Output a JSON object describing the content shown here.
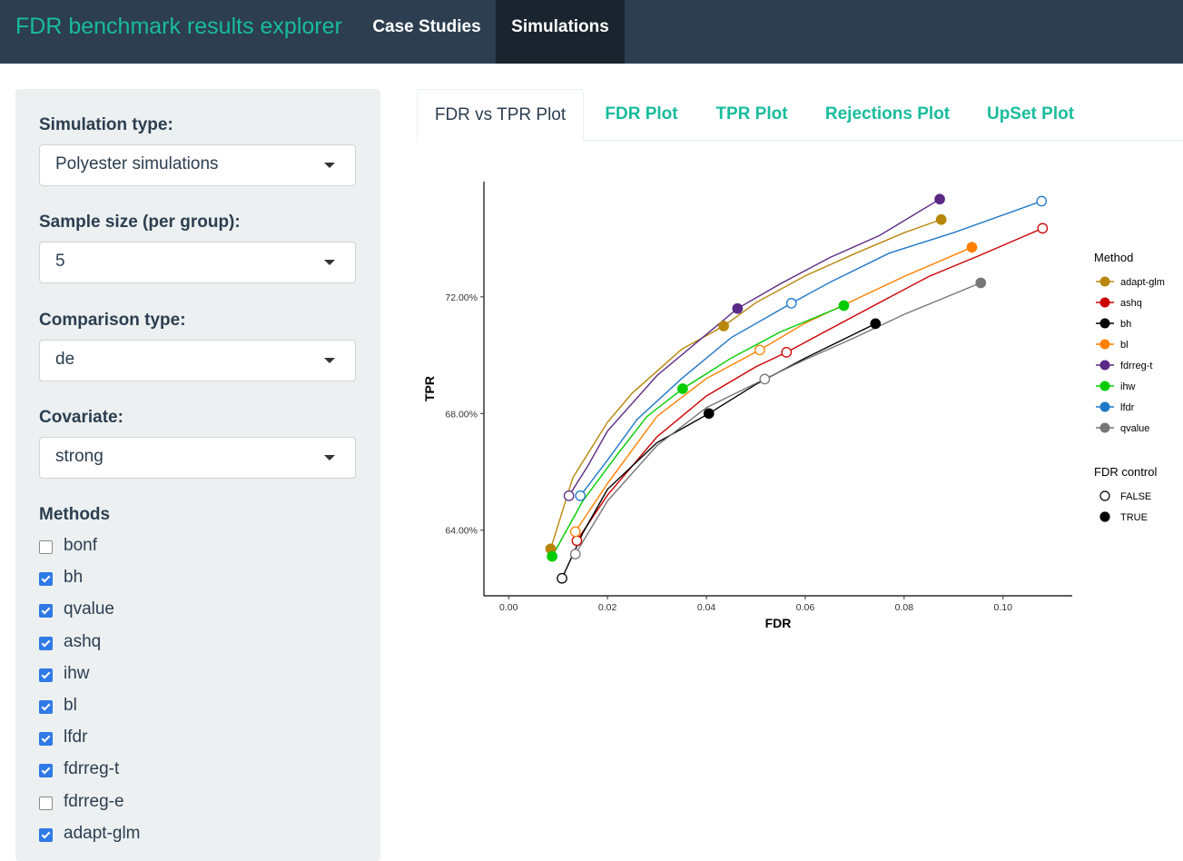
{
  "navbar": {
    "brand": "FDR benchmark results explorer",
    "items": [
      "Case Studies",
      "Simulations"
    ],
    "active": "Simulations"
  },
  "sidebar": {
    "simulation_type": {
      "label": "Simulation type:",
      "value": "Polyester simulations"
    },
    "sample_size": {
      "label": "Sample size (per group):",
      "value": "5"
    },
    "comparison_type": {
      "label": "Comparison type:",
      "value": "de"
    },
    "covariate": {
      "label": "Covariate:",
      "value": "strong"
    },
    "methods_title": "Methods",
    "methods": [
      {
        "label": "bonf",
        "checked": false
      },
      {
        "label": "bh",
        "checked": true
      },
      {
        "label": "qvalue",
        "checked": true
      },
      {
        "label": "ashq",
        "checked": true
      },
      {
        "label": "ihw",
        "checked": true
      },
      {
        "label": "bl",
        "checked": true
      },
      {
        "label": "lfdr",
        "checked": true
      },
      {
        "label": "fdrreg-t",
        "checked": true
      },
      {
        "label": "fdrreg-e",
        "checked": false
      },
      {
        "label": "adapt-glm",
        "checked": true
      }
    ]
  },
  "tabs": [
    "FDR vs TPR Plot",
    "FDR Plot",
    "TPR Plot",
    "Rejections Plot",
    "UpSet Plot"
  ],
  "active_tab": "FDR vs TPR Plot",
  "chart_data": {
    "type": "line",
    "title": "",
    "xlabel": "FDR",
    "ylabel": "TPR",
    "xlim": [
      -0.005,
      0.114
    ],
    "ylim": [
      0.6175,
      0.7595
    ],
    "x_ticks": [
      "0.00",
      "0.02",
      "0.04",
      "0.06",
      "0.08",
      "0.10"
    ],
    "x_tick_values": [
      0.0,
      0.02,
      0.04,
      0.06,
      0.08,
      0.1
    ],
    "y_ticks": [
      "64.00%",
      "68.00%",
      "72.00%"
    ],
    "y_tick_values": [
      0.64,
      0.68,
      0.72
    ],
    "legend_title": "Method",
    "legend2_title": "FDR control",
    "legend2_entries": [
      "FALSE",
      "TRUE"
    ],
    "series": [
      {
        "name": "adapt-glm",
        "color": "#b8860b",
        "line": [
          [
            0.0085,
            0.6336
          ],
          [
            0.013,
            0.658
          ],
          [
            0.02,
            0.677
          ],
          [
            0.025,
            0.687
          ],
          [
            0.035,
            0.702
          ],
          [
            0.0435,
            0.71
          ],
          [
            0.05,
            0.718
          ],
          [
            0.06,
            0.7272
          ],
          [
            0.07,
            0.7348
          ],
          [
            0.08,
            0.742
          ],
          [
            0.0875,
            0.7465
          ]
        ],
        "points": [
          [
            0.0085,
            0.6336,
            true
          ],
          [
            0.0435,
            0.71,
            true
          ],
          [
            0.0875,
            0.7465,
            true
          ]
        ]
      },
      {
        "name": "ashq",
        "color": "#cc0000",
        "line": [
          [
            0.0138,
            0.6364
          ],
          [
            0.02,
            0.652
          ],
          [
            0.03,
            0.672
          ],
          [
            0.04,
            0.686
          ],
          [
            0.05,
            0.696
          ],
          [
            0.0562,
            0.701
          ],
          [
            0.065,
            0.709
          ],
          [
            0.075,
            0.718
          ],
          [
            0.085,
            0.727
          ],
          [
            0.095,
            0.734
          ],
          [
            0.108,
            0.7435
          ]
        ],
        "points": [
          [
            0.0138,
            0.6364,
            false
          ],
          [
            0.0562,
            0.701,
            false
          ],
          [
            0.108,
            0.7435,
            false
          ]
        ]
      },
      {
        "name": "bh",
        "color": "#000000",
        "line": [
          [
            0.0108,
            0.6235
          ],
          [
            0.015,
            0.639
          ],
          [
            0.02,
            0.654
          ],
          [
            0.03,
            0.67
          ],
          [
            0.0405,
            0.68
          ],
          [
            0.05,
            0.69
          ],
          [
            0.06,
            0.699
          ],
          [
            0.0742,
            0.7108
          ]
        ],
        "points": [
          [
            0.0108,
            0.6235,
            false
          ],
          [
            0.0405,
            0.68,
            true
          ],
          [
            0.0742,
            0.7108,
            true
          ]
        ]
      },
      {
        "name": "bl",
        "color": "#ff7f00",
        "line": [
          [
            0.0135,
            0.6395
          ],
          [
            0.02,
            0.656
          ],
          [
            0.03,
            0.679
          ],
          [
            0.04,
            0.692
          ],
          [
            0.0508,
            0.7018
          ],
          [
            0.06,
            0.711
          ],
          [
            0.07,
            0.719
          ],
          [
            0.08,
            0.727
          ],
          [
            0.0937,
            0.737
          ]
        ],
        "points": [
          [
            0.0135,
            0.6395,
            false
          ],
          [
            0.0508,
            0.7018,
            false
          ],
          [
            0.0937,
            0.737,
            true
          ]
        ]
      },
      {
        "name": "fdrreg-t",
        "color": "#5b2a86",
        "line": [
          [
            0.0122,
            0.6518
          ],
          [
            0.016,
            0.662
          ],
          [
            0.02,
            0.674
          ],
          [
            0.03,
            0.693
          ],
          [
            0.0463,
            0.716
          ],
          [
            0.055,
            0.7245
          ],
          [
            0.065,
            0.7335
          ],
          [
            0.075,
            0.741
          ],
          [
            0.0872,
            0.7535
          ]
        ],
        "points": [
          [
            0.0122,
            0.6518,
            false
          ],
          [
            0.0463,
            0.716,
            true
          ],
          [
            0.0872,
            0.7535,
            true
          ]
        ]
      },
      {
        "name": "ihw",
        "color": "#00cc00",
        "line": [
          [
            0.0088,
            0.631
          ],
          [
            0.015,
            0.65
          ],
          [
            0.022,
            0.666
          ],
          [
            0.028,
            0.679
          ],
          [
            0.0352,
            0.6885
          ],
          [
            0.045,
            0.699
          ],
          [
            0.055,
            0.708
          ],
          [
            0.0678,
            0.717
          ]
        ],
        "points": [
          [
            0.0088,
            0.631,
            true
          ],
          [
            0.0352,
            0.6885,
            true
          ],
          [
            0.0678,
            0.717,
            true
          ]
        ]
      },
      {
        "name": "lfdr",
        "color": "#1f78c8",
        "line": [
          [
            0.0145,
            0.6518
          ],
          [
            0.02,
            0.664
          ],
          [
            0.026,
            0.678
          ],
          [
            0.035,
            0.692
          ],
          [
            0.045,
            0.706
          ],
          [
            0.0572,
            0.7178
          ],
          [
            0.065,
            0.725
          ],
          [
            0.077,
            0.735
          ],
          [
            0.09,
            0.742
          ],
          [
            0.1078,
            0.7528
          ]
        ],
        "points": [
          [
            0.0145,
            0.6518,
            false
          ],
          [
            0.0572,
            0.7178,
            false
          ],
          [
            0.1078,
            0.7528,
            false
          ]
        ]
      },
      {
        "name": "qvalue",
        "color": "#777777",
        "line": [
          [
            0.0135,
            0.6318
          ],
          [
            0.02,
            0.65
          ],
          [
            0.03,
            0.669
          ],
          [
            0.04,
            0.682
          ],
          [
            0.0518,
            0.6918
          ],
          [
            0.06,
            0.6985
          ],
          [
            0.07,
            0.706
          ],
          [
            0.08,
            0.714
          ],
          [
            0.0955,
            0.7248
          ]
        ],
        "points": [
          [
            0.0135,
            0.6318,
            false
          ],
          [
            0.0518,
            0.6918,
            false
          ],
          [
            0.0955,
            0.7248,
            true
          ]
        ]
      }
    ]
  }
}
